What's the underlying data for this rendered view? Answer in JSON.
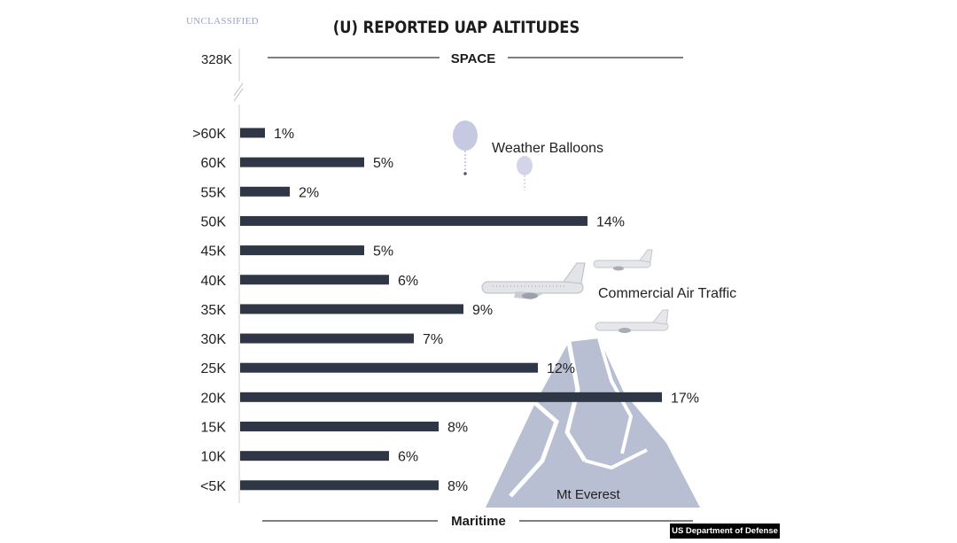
{
  "header": {
    "classification": "UNCLASSIFIED",
    "title": "(U) REPORTED UAP ALTITUDES"
  },
  "chart_data": {
    "type": "bar",
    "orientation": "horizontal",
    "title": "(U) REPORTED UAP ALTITUDES",
    "categories": [
      ">60K",
      "60K",
      "55K",
      "50K",
      "45K",
      "40K",
      "35K",
      "30K",
      "25K",
      "20K",
      "15K",
      "10K",
      "<5K"
    ],
    "values": [
      1,
      5,
      2,
      14,
      5,
      6,
      9,
      7,
      12,
      17,
      8,
      6,
      8
    ],
    "value_labels": [
      "1%",
      "5%",
      "2%",
      "14%",
      "5%",
      "6%",
      "9%",
      "7%",
      "12%",
      "17%",
      "8%",
      "6%",
      "8%"
    ],
    "xlim": [
      0,
      18
    ],
    "grid": false,
    "bar_color": "#2f3747",
    "top_marker": {
      "tick_label": "328K",
      "label": "SPACE"
    },
    "bottom_marker": {
      "label": "Maritime"
    },
    "annotations": [
      {
        "label": "Weather Balloons",
        "icon": "balloon-icon"
      },
      {
        "label": "Commercial Air Traffic",
        "icon": "airplane-icon"
      },
      {
        "label": "Mt Everest",
        "icon": "mountain-icon"
      }
    ]
  },
  "colors": {
    "bar": "#2f3747",
    "mountain": "#b8bfd3",
    "balloon": "#c6c9e2",
    "text": "#1c1c1c"
  },
  "footer": {
    "credit": "US Department of Defense"
  }
}
